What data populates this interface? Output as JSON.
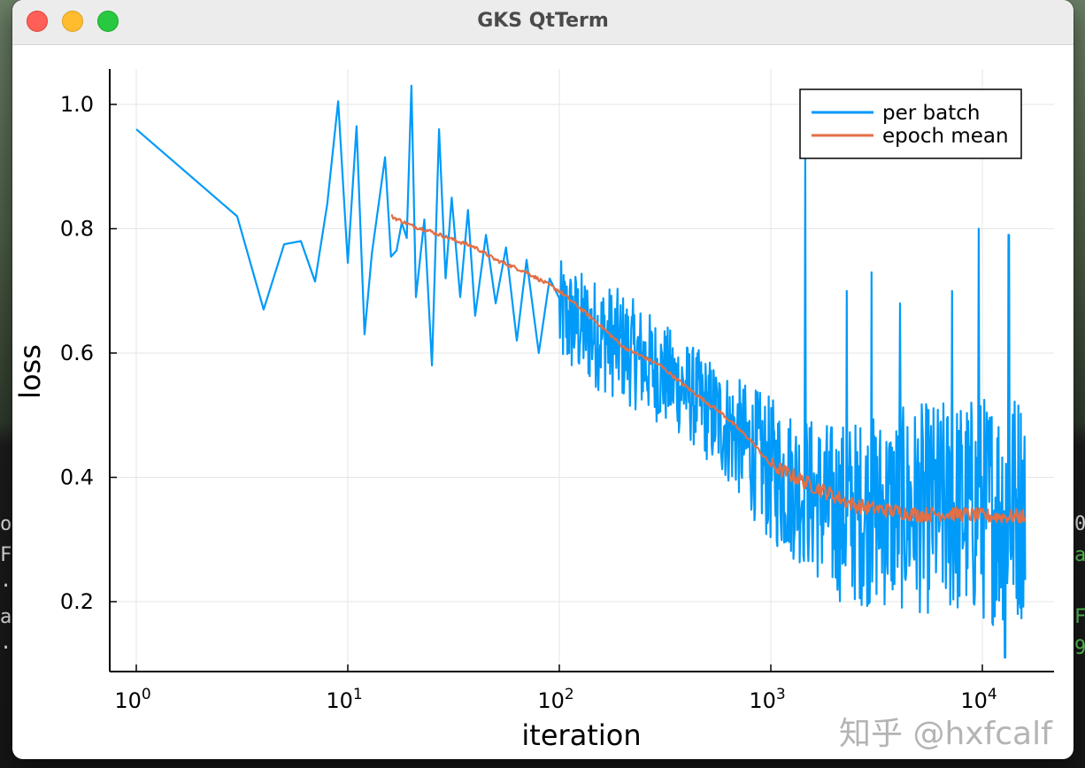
{
  "window": {
    "title": "GKS QtTerm"
  },
  "watermark": "知乎 @hxfcalf",
  "background_text": {
    "left": [
      "o",
      "F",
      "·",
      "a",
      "·"
    ],
    "right": [
      "0",
      "a",
      "F",
      "9"
    ]
  },
  "colors": {
    "per_batch": "#009af9",
    "epoch_mean": "#e26f46",
    "axis": "#000000",
    "grid": "#e6e6e6"
  },
  "chart_data": {
    "type": "line",
    "xlabel": "iteration",
    "ylabel": "loss",
    "xscale": "log10",
    "xlim": [
      1,
      16000
    ],
    "ylim": [
      0.1,
      1.05
    ],
    "x_ticks": [
      {
        "value": 1,
        "base": "10",
        "exp": "0"
      },
      {
        "value": 10,
        "base": "10",
        "exp": "1"
      },
      {
        "value": 100,
        "base": "10",
        "exp": "2"
      },
      {
        "value": 1000,
        "base": "10",
        "exp": "3"
      },
      {
        "value": 10000,
        "base": "10",
        "exp": "4"
      }
    ],
    "y_ticks": [
      0.2,
      0.4,
      0.6,
      0.8,
      1.0
    ],
    "y_tick_labels": [
      "0.2",
      "0.4",
      "0.6",
      "0.8",
      "1.0"
    ],
    "grid": true,
    "legend_position": "top-right",
    "series": [
      {
        "name": "per batch",
        "color": "#009af9",
        "x": [
          1,
          3,
          4,
          5,
          6,
          7,
          8,
          9,
          10,
          11,
          12,
          13,
          15,
          16,
          17,
          18,
          19,
          20,
          21,
          23,
          25,
          27,
          29,
          31,
          34,
          37,
          40,
          45,
          50,
          56,
          63,
          70,
          80,
          90,
          100,
          115,
          130,
          150,
          175,
          200,
          250,
          300,
          400,
          500,
          700,
          1000,
          1500,
          2000,
          3000,
          4000,
          6000,
          8000,
          10000,
          13000,
          16000
        ],
        "y": [
          0.96,
          0.82,
          0.67,
          0.775,
          0.78,
          0.715,
          0.84,
          1.005,
          0.745,
          0.965,
          0.63,
          0.76,
          0.915,
          0.755,
          0.765,
          0.81,
          0.785,
          1.03,
          0.69,
          0.815,
          0.58,
          0.96,
          0.72,
          0.85,
          0.69,
          0.83,
          0.66,
          0.79,
          0.68,
          0.77,
          0.62,
          0.75,
          0.6,
          0.72,
          0.67,
          0.7,
          0.6,
          0.66,
          0.59,
          0.62,
          0.57,
          0.56,
          0.52,
          0.47,
          0.44,
          0.41,
          0.37,
          0.33,
          0.31,
          0.3,
          0.29,
          0.28,
          0.3,
          0.27,
          0.33
        ],
        "band": {
          "x": [
            100,
            200,
            400,
            700,
            1000,
            1500,
            2000,
            3000,
            5000,
            8000,
            12000,
            16000
          ],
          "lower": [
            0.57,
            0.52,
            0.46,
            0.37,
            0.29,
            0.25,
            0.2,
            0.19,
            0.18,
            0.17,
            0.16,
            0.17
          ],
          "upper": [
            0.75,
            0.7,
            0.62,
            0.56,
            0.53,
            0.5,
            0.49,
            0.5,
            0.52,
            0.53,
            0.54,
            0.55
          ]
        },
        "spikes": [
          {
            "x": 1450,
            "y": 0.92
          },
          {
            "x": 2300,
            "y": 0.7
          },
          {
            "x": 3000,
            "y": 0.73
          },
          {
            "x": 4100,
            "y": 0.68
          },
          {
            "x": 7200,
            "y": 0.7
          },
          {
            "x": 9600,
            "y": 0.8
          },
          {
            "x": 13300,
            "y": 0.79
          },
          {
            "x": 16000,
            "y": 0.62
          }
        ],
        "min_point": {
          "x": 12800,
          "y": 0.11
        }
      },
      {
        "name": "epoch mean",
        "color": "#e26f46",
        "x": [
          16,
          20,
          25,
          30,
          40,
          50,
          70,
          100,
          150,
          200,
          300,
          400,
          600,
          800,
          1000,
          1500,
          2000,
          2500,
          3000,
          4000,
          5000,
          7000,
          10000,
          13000,
          16000
        ],
        "y": [
          0.82,
          0.805,
          0.795,
          0.785,
          0.77,
          0.75,
          0.73,
          0.7,
          0.65,
          0.61,
          0.58,
          0.545,
          0.5,
          0.46,
          0.42,
          0.39,
          0.37,
          0.355,
          0.35,
          0.345,
          0.34,
          0.342,
          0.338,
          0.337,
          0.337
        ]
      }
    ]
  }
}
